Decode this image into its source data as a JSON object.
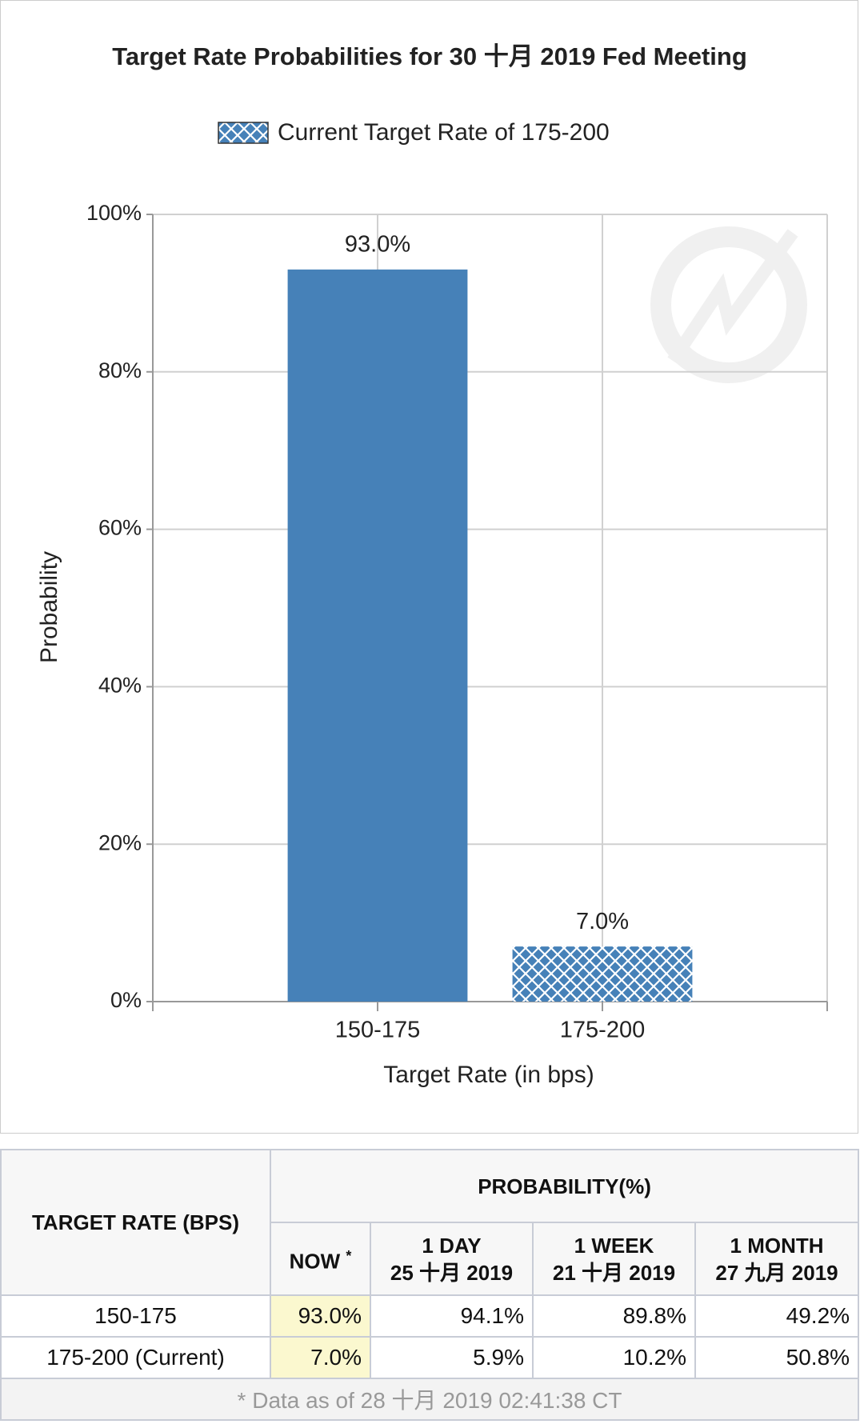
{
  "chart_data": {
    "type": "bar",
    "title": "Target Rate Probabilities for 30 十月 2019  Fed Meeting",
    "legend": "Current Target Rate of 175-200",
    "x_label": "Target Rate (in bps)",
    "y_label": "Probability",
    "categories": [
      "150-175",
      "175-200"
    ],
    "values": [
      93.0,
      7.0
    ],
    "value_labels": [
      "93.0%",
      "7.0%"
    ],
    "hatched": [
      false,
      true
    ],
    "color": "#4681b8",
    "ylim": [
      0,
      100
    ],
    "yticks": [
      {
        "value": 0,
        "label": "0%"
      },
      {
        "value": 20,
        "label": "20%"
      },
      {
        "value": 40,
        "label": "40%"
      },
      {
        "value": 60,
        "label": "60%"
      },
      {
        "value": 80,
        "label": "80%"
      },
      {
        "value": 100,
        "label": "100%"
      }
    ],
    "grid": true
  },
  "table": {
    "header": {
      "rate": "TARGET RATE (BPS)",
      "probability": "PROBABILITY(%)",
      "columns": [
        {
          "label": "NOW",
          "note": "*"
        },
        {
          "label": "1 DAY",
          "date": "25 十月 2019"
        },
        {
          "label": "1 WEEK",
          "date": "21 十月 2019"
        },
        {
          "label": "1 MONTH",
          "date": "27 九月 2019"
        }
      ]
    },
    "rows": [
      [
        "150-175",
        "93.0%",
        "94.1%",
        "89.8%",
        "49.2%"
      ],
      [
        "175-200 (Current)",
        "7.0%",
        "5.9%",
        "10.2%",
        "50.8%"
      ]
    ],
    "footnote": "* Data as of 28 十月 2019 02:41:38 CT"
  }
}
